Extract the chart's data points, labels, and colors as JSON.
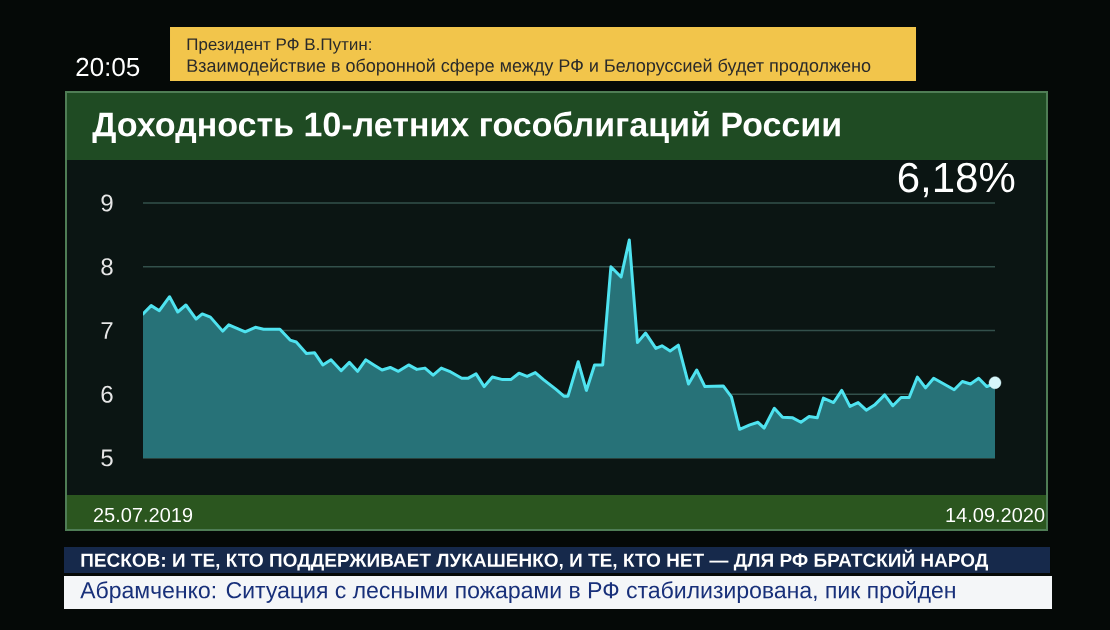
{
  "chart_data": {
    "type": "area",
    "title": "Доходность 10-летних гособлигаций России",
    "xlim": [
      "2019-07-25",
      "2020-09-14"
    ],
    "xticks": [
      {
        "value": "2019-07-25",
        "label": "25.07.2019"
      },
      {
        "value": "2020-09-14",
        "label": "14.09.2020"
      }
    ],
    "ylim": [
      5,
      9
    ],
    "yticks": [
      5,
      6,
      7,
      8,
      9
    ],
    "grid": "y",
    "series": [
      {
        "color": "#4fe3f0",
        "x": [
          "2019-07-25",
          "2019-07-29",
          "2019-08-02",
          "2019-08-07",
          "2019-08-11",
          "2019-08-15",
          "2019-08-20",
          "2019-08-23",
          "2019-08-27",
          "2019-09-02",
          "2019-09-05",
          "2019-09-13",
          "2019-09-18",
          "2019-09-22",
          "2019-09-30",
          "2019-10-05",
          "2019-10-08",
          "2019-10-13",
          "2019-10-17",
          "2019-10-21",
          "2019-10-25",
          "2019-10-30",
          "2019-11-03",
          "2019-11-07",
          "2019-11-11",
          "2019-11-15",
          "2019-11-19",
          "2019-11-23",
          "2019-11-27",
          "2019-12-02",
          "2019-12-06",
          "2019-12-10",
          "2019-12-14",
          "2019-12-18",
          "2019-12-22",
          "2019-12-28",
          "2019-12-31",
          "2020-01-04",
          "2020-01-08",
          "2020-01-12",
          "2020-01-17",
          "2020-01-21",
          "2020-01-25",
          "2020-01-29",
          "2020-02-02",
          "2020-02-06",
          "2020-02-12",
          "2020-02-16",
          "2020-02-18",
          "2020-02-23",
          "2020-02-27",
          "2020-03-02",
          "2020-03-06",
          "2020-03-10",
          "2020-03-15",
          "2020-03-19",
          "2020-03-23",
          "2020-03-27",
          "2020-04-01",
          "2020-04-04",
          "2020-04-08",
          "2020-04-12",
          "2020-04-17",
          "2020-04-21",
          "2020-04-25",
          "2020-05-04",
          "2020-05-08",
          "2020-05-12",
          "2020-05-17",
          "2020-05-21",
          "2020-05-24",
          "2020-05-29",
          "2020-06-02",
          "2020-06-07",
          "2020-06-11",
          "2020-06-15",
          "2020-06-19",
          "2020-06-22",
          "2020-06-27",
          "2020-07-01",
          "2020-07-05",
          "2020-07-09",
          "2020-07-13",
          "2020-07-17",
          "2020-07-22",
          "2020-07-26",
          "2020-07-30",
          "2020-08-03",
          "2020-08-07",
          "2020-08-11",
          "2020-08-15",
          "2020-08-20",
          "2020-08-25",
          "2020-08-29",
          "2020-09-02",
          "2020-09-06",
          "2020-09-10",
          "2020-09-14"
        ],
        "values": [
          7.26,
          7.39,
          7.31,
          7.53,
          7.29,
          7.4,
          7.18,
          7.26,
          7.21,
          6.99,
          7.09,
          6.98,
          7.05,
          7.02,
          7.02,
          6.85,
          6.82,
          6.64,
          6.65,
          6.46,
          6.54,
          6.37,
          6.5,
          6.36,
          6.54,
          6.46,
          6.38,
          6.42,
          6.36,
          6.46,
          6.39,
          6.41,
          6.3,
          6.41,
          6.36,
          6.25,
          6.25,
          6.32,
          6.12,
          6.27,
          6.23,
          6.23,
          6.33,
          6.28,
          6.34,
          6.23,
          6.08,
          5.97,
          5.97,
          6.51,
          6.06,
          6.46,
          6.46,
          8.0,
          7.84,
          8.42,
          6.81,
          6.96,
          6.72,
          6.76,
          6.68,
          6.77,
          6.16,
          6.38,
          6.12,
          6.13,
          5.96,
          5.45,
          5.52,
          5.56,
          5.47,
          5.78,
          5.64,
          5.63,
          5.56,
          5.65,
          5.63,
          5.94,
          5.87,
          6.06,
          5.81,
          5.87,
          5.75,
          5.83,
          5.99,
          5.82,
          5.95,
          5.95,
          6.27,
          6.1,
          6.25,
          6.16,
          6.07,
          6.2,
          6.16,
          6.25,
          6.12,
          6.18
        ]
      },
      {
        "type": "scatter",
        "color": "#d6f6fa",
        "marker": "circle",
        "x": [
          "2020-09-14"
        ],
        "values": [
          6.18
        ]
      }
    ],
    "annotations": [
      "20:05",
      "Президент РФ В.Путин:",
      "Взаимодействие в оборонной сфере между РФ и Белоруссией будет продолжено",
      "6,18%",
      "ПЕСКОВ: И ТЕ, КТО ПОДДЕРЖИВАЕТ ЛУКАШЕНКО, И ТЕ, КТО НЕТ — ДЛЯ РФ БРАТСКИЙ НАРОД",
      "Абрамченко: Ситуация с лесными пожарами в РФ стабилизирована, пик пройден"
    ]
  }
}
